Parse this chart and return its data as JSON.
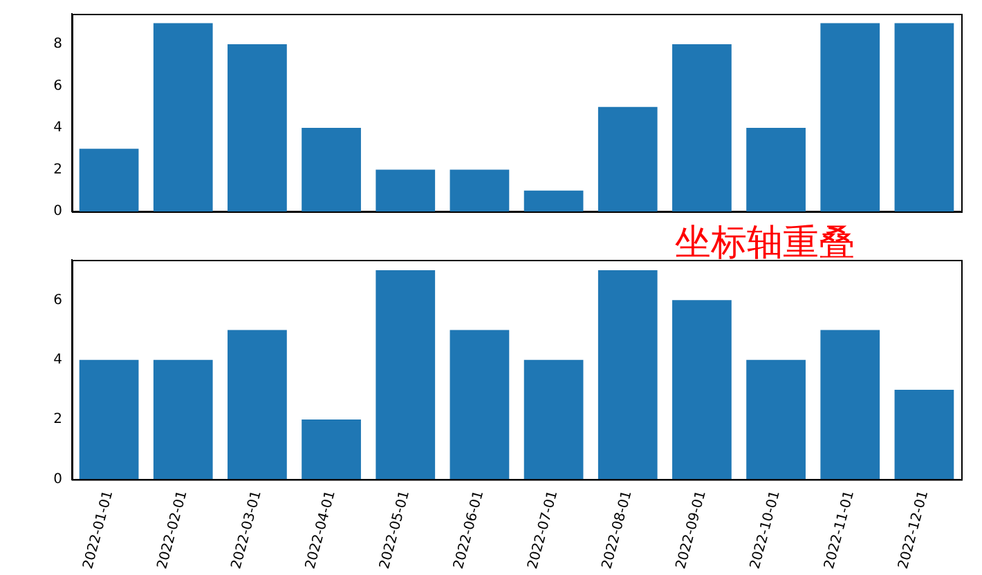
{
  "chart_data": [
    {
      "type": "bar",
      "categories": [
        "2022-01-01",
        "2022-02-01",
        "2022-03-01",
        "2022-04-01",
        "2022-05-01",
        "2022-06-01",
        "2022-07-01",
        "2022-08-01",
        "2022-09-01",
        "2022-10-01",
        "2022-11-01",
        "2022-12-01"
      ],
      "values": [
        3,
        9,
        8,
        4,
        2,
        2,
        1,
        5,
        8,
        4,
        9,
        9
      ],
      "color": "#1f77b4",
      "ylim": [
        0,
        9.45
      ],
      "yticks": [
        0,
        2,
        4,
        6,
        8
      ],
      "tick_labels": "y",
      "grid": false,
      "annotations": [
        "坐标轴重叠"
      ]
    },
    {
      "type": "bar",
      "categories": [
        "2022-01-01",
        "2022-02-01",
        "2022-03-01",
        "2022-04-01",
        "2022-05-01",
        "2022-06-01",
        "2022-07-01",
        "2022-08-01",
        "2022-09-01",
        "2022-10-01",
        "2022-11-01",
        "2022-12-01"
      ],
      "values": [
        4,
        4,
        5,
        2,
        7,
        5,
        4,
        7,
        6,
        4,
        5,
        3
      ],
      "color": "#1f77b4",
      "ylim": [
        0,
        7.35
      ],
      "yticks": [
        0,
        2,
        4,
        6
      ],
      "grid": false
    }
  ]
}
